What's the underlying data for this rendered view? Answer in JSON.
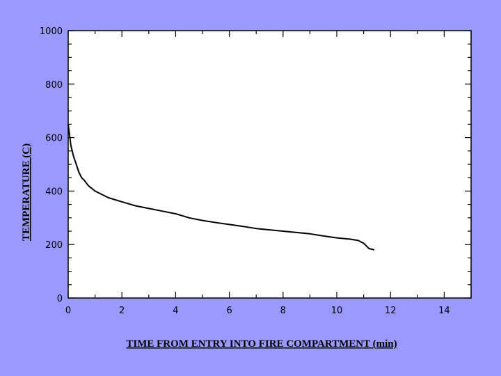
{
  "chart_data": {
    "type": "line",
    "title": "",
    "xlabel": "TIME FROM ENTRY INTO FIRE COMPARTMENT (min)",
    "ylabel": "TEMPERATURE (C)",
    "xlim": [
      0,
      15
    ],
    "ylim": [
      0,
      1000
    ],
    "xticks": [
      0,
      2,
      4,
      6,
      8,
      10,
      12,
      14
    ],
    "yticks": [
      0,
      200,
      400,
      600,
      800,
      1000
    ],
    "grid": false,
    "series": [
      {
        "color": "#000000",
        "x": [
          0,
          0.1,
          0.2,
          0.3,
          0.4,
          0.5,
          0.6,
          0.75,
          1.0,
          1.5,
          2.0,
          2.5,
          3.0,
          3.5,
          4.0,
          4.5,
          5.0,
          5.5,
          6.0,
          6.5,
          7.0,
          7.5,
          8.0,
          8.5,
          9.0,
          9.5,
          10.0,
          10.5,
          10.8,
          11.0,
          11.2,
          11.4
        ],
        "y": [
          650,
          570,
          530,
          500,
          470,
          450,
          440,
          420,
          400,
          375,
          360,
          345,
          335,
          325,
          315,
          300,
          290,
          282,
          275,
          268,
          260,
          255,
          250,
          245,
          240,
          232,
          225,
          220,
          215,
          205,
          185,
          180
        ]
      }
    ]
  }
}
